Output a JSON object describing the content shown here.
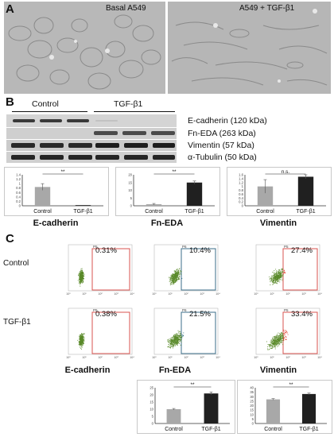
{
  "panel_a": {
    "letter": "A",
    "left_label": "Basal A549",
    "right_label": "A549 + TGF-β1"
  },
  "panel_b": {
    "letter": "B",
    "group_control": "Control",
    "group_tgf": "TGF-β1",
    "blot_labels": [
      "E-cadherin (120 kDa)",
      "Fn-EDA (263 kDa)",
      "Vimentin (57 kDa)",
      "α-Tubulin (50 kDa)"
    ],
    "charts": [
      {
        "type": "bar",
        "categories": [
          "Control",
          "TGF-β1"
        ],
        "values": [
          0.85,
          0.03
        ],
        "errors": [
          0.15,
          0.0
        ],
        "yticks": [
          "0",
          "0.2",
          "0.4",
          "0.6",
          "0.8",
          "1",
          "1.2",
          "1.4"
        ],
        "ylim": [
          0,
          1.4
        ],
        "significance": "**",
        "colors": [
          "#a8a8a8",
          "#202020"
        ]
      },
      {
        "type": "bar",
        "categories": [
          "Control",
          "TGF-β1"
        ],
        "values": [
          1.0,
          15.0
        ],
        "errors": [
          0.5,
          1.0
        ],
        "yticks": [
          "0",
          "5",
          "10",
          "15",
          "20"
        ],
        "ylim": [
          0,
          20
        ],
        "significance": "**",
        "colors": [
          "#a8a8a8",
          "#202020"
        ]
      },
      {
        "type": "bar",
        "categories": [
          "Control",
          "TGF-β1"
        ],
        "values": [
          1.0,
          1.5
        ],
        "errors": [
          0.35,
          0.1
        ],
        "yticks": [
          "0",
          "0.2",
          "0.4",
          "0.6",
          "0.8",
          "1",
          "1.2",
          "1.4",
          "1.6"
        ],
        "ylim": [
          0,
          1.6
        ],
        "significance": "n.s.",
        "colors": [
          "#a8a8a8",
          "#202020"
        ]
      }
    ],
    "marker_names": [
      "E-cadherin",
      "Fn-EDA",
      "Vimentin"
    ]
  },
  "panel_c": {
    "letter": "C",
    "row_labels": [
      "Control",
      "TGF-β1"
    ],
    "gate_labels": [
      "P5",
      "P6",
      "P5"
    ],
    "percentages": {
      "control": [
        "0.31%",
        "10.4%",
        "27.4%"
      ],
      "tgf": [
        "0.38%",
        "21.5%",
        "33.4%"
      ]
    },
    "gate_colors": [
      "#d9534f",
      "#3b6e8a",
      "#d9534f"
    ],
    "marker_names": [
      "E-cadherin",
      "Fn-EDA",
      "Vimentin"
    ],
    "axis_ticks": [
      "10⁰",
      "10¹",
      "10²",
      "10³",
      "10⁴"
    ],
    "charts": [
      {
        "type": "bar",
        "categories": [
          "Control",
          "TGF-β1"
        ],
        "values": [
          10,
          21
        ],
        "errors": [
          0.5,
          1.0
        ],
        "yticks": [
          "0",
          "5",
          "10",
          "15",
          "20",
          "25"
        ],
        "ylim": [
          0,
          25
        ],
        "significance": "**",
        "colors": [
          "#a8a8a8",
          "#202020"
        ]
      },
      {
        "type": "bar",
        "categories": [
          "Control",
          "TGF-β1"
        ],
        "values": [
          27,
          33
        ],
        "errors": [
          0.8,
          1.0
        ],
        "yticks": [
          "0",
          "5",
          "10",
          "15",
          "20",
          "25",
          "30",
          "35",
          "40"
        ],
        "ylim": [
          0,
          40
        ],
        "significance": "**",
        "colors": [
          "#a8a8a8",
          "#202020"
        ]
      }
    ]
  }
}
